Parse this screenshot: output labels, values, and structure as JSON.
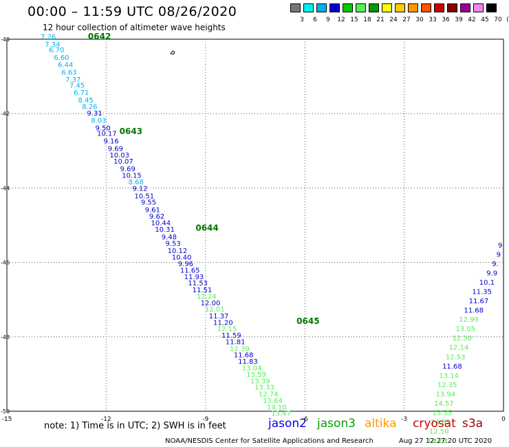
{
  "title": "00:00 – 11:59 UTC 08/26/2020",
  "subtitle": "12 hour collection of altimeter wave heights",
  "note": "note: 1) Time is in UTC; 2) SWH is in feet",
  "credit": "NOAA/NESDIS Center for Satellite Applications and Research",
  "timestamp": "Aug 27 12:27:20 UTC 2020",
  "legend": [
    {
      "name": "jason2",
      "color": "#0000ee"
    },
    {
      "name": "jason3",
      "color": "#00a000"
    },
    {
      "name": "altika",
      "color": "#ff9900"
    },
    {
      "name": "cryosat",
      "color": "#cc0000"
    },
    {
      "name": "s3a",
      "color": "#990000"
    }
  ],
  "color_scale": {
    "labels": [
      "3",
      "6",
      "9",
      "12",
      "15",
      "18",
      "21",
      "24",
      "27",
      "30",
      "33",
      "36",
      "39",
      "42",
      "45",
      "70",
      "(ft)"
    ],
    "colors": [
      "#777777",
      "#00f0f0",
      "#00b0f0",
      "#0000cc",
      "#00cc00",
      "#55ee55",
      "#009900",
      "#ffff00",
      "#ffcc00",
      "#ff9900",
      "#ff5500",
      "#cc0000",
      "#880000",
      "#990099",
      "#ee88ee",
      "#000000"
    ]
  },
  "map": {
    "lon_ticks": [
      "-15",
      "-12",
      "-9",
      "-6",
      "-3",
      "0"
    ],
    "lat_ticks": [
      "-40",
      "-42",
      "-44",
      "-46",
      "-48",
      "-50"
    ],
    "lon_range": [
      -15,
      0
    ],
    "lat_range": [
      -40,
      -50
    ]
  },
  "time_labels": [
    {
      "text": "0642",
      "lon": -12.55,
      "lat": -40.0
    },
    {
      "text": "0643",
      "lon": -11.6,
      "lat": -42.55
    },
    {
      "text": "0644",
      "lon": -9.3,
      "lat": -45.15
    },
    {
      "text": "0645",
      "lon": -6.25,
      "lat": -47.65
    }
  ],
  "tracks": [
    {
      "satellite": "jason3",
      "points": [
        {
          "v": "7.26",
          "c": "#00b0f0",
          "lon": -13.75,
          "lat": -40.0
        },
        {
          "v": "7.34",
          "c": "#00b0f0",
          "lon": -13.62,
          "lat": -40.2
        },
        {
          "v": "6.70",
          "c": "#00b0f0",
          "lon": -13.5,
          "lat": -40.35
        },
        {
          "v": "6.60",
          "c": "#00b0f0",
          "lon": -13.35,
          "lat": -40.55
        },
        {
          "v": "6.44",
          "c": "#00b0f0",
          "lon": -13.23,
          "lat": -40.75
        },
        {
          "v": "6.63",
          "c": "#00b0f0",
          "lon": -13.12,
          "lat": -40.95
        },
        {
          "v": "7.37",
          "c": "#00b0f0",
          "lon": -13.0,
          "lat": -41.15
        },
        {
          "v": "7.45",
          "c": "#00b0f0",
          "lon": -12.88,
          "lat": -41.3
        },
        {
          "v": "6.71",
          "c": "#00b0f0",
          "lon": -12.75,
          "lat": -41.5
        },
        {
          "v": "8.45",
          "c": "#00b0f0",
          "lon": -12.62,
          "lat": -41.7
        },
        {
          "v": "8.26",
          "c": "#00b0f0",
          "lon": -12.5,
          "lat": -41.88
        },
        {
          "v": "9.31",
          "c": "#0000cc",
          "lon": -12.35,
          "lat": -42.05
        },
        {
          "v": "8.03",
          "c": "#00b0f0",
          "lon": -12.23,
          "lat": -42.25
        },
        {
          "v": "9.50",
          "c": "#0000cc",
          "lon": -12.1,
          "lat": -42.45
        },
        {
          "v": "10.17",
          "c": "#0000cc",
          "lon": -11.98,
          "lat": -42.6
        },
        {
          "v": "9.16",
          "c": "#0000cc",
          "lon": -11.85,
          "lat": -42.8
        },
        {
          "v": "9.69",
          "c": "#0000cc",
          "lon": -11.72,
          "lat": -43.0
        },
        {
          "v": "10.03",
          "c": "#0000cc",
          "lon": -11.6,
          "lat": -43.18
        },
        {
          "v": "10.07",
          "c": "#0000cc",
          "lon": -11.48,
          "lat": -43.35
        },
        {
          "v": "9.69",
          "c": "#0000cc",
          "lon": -11.35,
          "lat": -43.55
        },
        {
          "v": "10.15",
          "c": "#0000cc",
          "lon": -11.23,
          "lat": -43.72
        },
        {
          "v": "8.68",
          "c": "#00b0f0",
          "lon": -11.1,
          "lat": -43.9
        },
        {
          "v": "9.12",
          "c": "#0000cc",
          "lon": -10.98,
          "lat": -44.08
        },
        {
          "v": "10.51",
          "c": "#0000cc",
          "lon": -10.85,
          "lat": -44.28
        },
        {
          "v": "9.55",
          "c": "#0000cc",
          "lon": -10.72,
          "lat": -44.45
        },
        {
          "v": "9.61",
          "c": "#0000cc",
          "lon": -10.6,
          "lat": -44.65
        },
        {
          "v": "9.62",
          "c": "#0000cc",
          "lon": -10.47,
          "lat": -44.82
        },
        {
          "v": "10.44",
          "c": "#0000cc",
          "lon": -10.35,
          "lat": -45.0
        },
        {
          "v": "10.31",
          "c": "#0000cc",
          "lon": -10.23,
          "lat": -45.18
        },
        {
          "v": "9.48",
          "c": "#0000cc",
          "lon": -10.1,
          "lat": -45.38
        },
        {
          "v": "9.53",
          "c": "#0000cc",
          "lon": -9.98,
          "lat": -45.55
        },
        {
          "v": "10.12",
          "c": "#0000cc",
          "lon": -9.85,
          "lat": -45.75
        },
        {
          "v": "10.40",
          "c": "#0000cc",
          "lon": -9.72,
          "lat": -45.92
        },
        {
          "v": "9.96",
          "c": "#0000cc",
          "lon": -9.6,
          "lat": -46.1
        },
        {
          "v": "11.65",
          "c": "#0000cc",
          "lon": -9.47,
          "lat": -46.28
        },
        {
          "v": "11.93",
          "c": "#0000cc",
          "lon": -9.35,
          "lat": -46.45
        },
        {
          "v": "11.53",
          "c": "#0000cc",
          "lon": -9.23,
          "lat": -46.62
        },
        {
          "v": "11.51",
          "c": "#0000cc",
          "lon": -9.1,
          "lat": -46.8
        },
        {
          "v": "12.24",
          "c": "#55ee55",
          "lon": -8.97,
          "lat": -46.98
        },
        {
          "v": "12.00",
          "c": "#0000cc",
          "lon": -8.85,
          "lat": -47.15
        },
        {
          "v": "12.01",
          "c": "#55ee55",
          "lon": -8.72,
          "lat": -47.32
        },
        {
          "v": "11.37",
          "c": "#0000cc",
          "lon": -8.6,
          "lat": -47.5
        },
        {
          "v": "11.20",
          "c": "#0000cc",
          "lon": -8.47,
          "lat": -47.68
        },
        {
          "v": "12.15",
          "c": "#55ee55",
          "lon": -8.35,
          "lat": -47.85
        },
        {
          "v": "11.59",
          "c": "#0000cc",
          "lon": -8.22,
          "lat": -48.02
        },
        {
          "v": "11.81",
          "c": "#0000cc",
          "lon": -8.1,
          "lat": -48.2
        },
        {
          "v": "12.39",
          "c": "#55ee55",
          "lon": -7.97,
          "lat": -48.38
        },
        {
          "v": "11.68",
          "c": "#0000cc",
          "lon": -7.85,
          "lat": -48.55
        },
        {
          "v": "11.83",
          "c": "#0000cc",
          "lon": -7.72,
          "lat": -48.72
        },
        {
          "v": "13.04",
          "c": "#55ee55",
          "lon": -7.6,
          "lat": -48.9
        },
        {
          "v": "13.59",
          "c": "#55ee55",
          "lon": -7.47,
          "lat": -49.08
        },
        {
          "v": "13.39",
          "c": "#55ee55",
          "lon": -7.35,
          "lat": -49.25
        },
        {
          "v": "13.33",
          "c": "#55ee55",
          "lon": -7.22,
          "lat": -49.42
        },
        {
          "v": "12.74",
          "c": "#55ee55",
          "lon": -7.1,
          "lat": -49.6
        },
        {
          "v": "13.64",
          "c": "#55ee55",
          "lon": -6.97,
          "lat": -49.78
        },
        {
          "v": "14.10",
          "c": "#55ee55",
          "lon": -6.85,
          "lat": -49.95
        },
        {
          "v": "13.47",
          "c": "#55ee55",
          "lon": -6.72,
          "lat": -50.12
        }
      ]
    },
    {
      "satellite": "jason3",
      "points": [
        {
          "v": "9",
          "c": "#0000cc",
          "lon": -0.1,
          "lat": -45.6
        },
        {
          "v": "9",
          "c": "#0000cc",
          "lon": -0.15,
          "lat": -45.85
        },
        {
          "v": "9.",
          "c": "#0000cc",
          "lon": -0.25,
          "lat": -46.1
        },
        {
          "v": "9.9",
          "c": "#0000cc",
          "lon": -0.35,
          "lat": -46.35
        },
        {
          "v": "10.1",
          "c": "#0000cc",
          "lon": -0.5,
          "lat": -46.6
        },
        {
          "v": "11.35",
          "c": "#0000cc",
          "lon": -0.65,
          "lat": -46.85
        },
        {
          "v": "11.67",
          "c": "#0000cc",
          "lon": -0.75,
          "lat": -47.1
        },
        {
          "v": "11.68",
          "c": "#0000cc",
          "lon": -0.9,
          "lat": -47.35
        },
        {
          "v": "12.99",
          "c": "#55ee55",
          "lon": -1.05,
          "lat": -47.6
        },
        {
          "v": "13.05",
          "c": "#55ee55",
          "lon": -1.15,
          "lat": -47.85
        },
        {
          "v": "12.50",
          "c": "#55ee55",
          "lon": -1.25,
          "lat": -48.1
        },
        {
          "v": "12.14",
          "c": "#55ee55",
          "lon": -1.35,
          "lat": -48.35
        },
        {
          "v": "12.53",
          "c": "#55ee55",
          "lon": -1.45,
          "lat": -48.6
        },
        {
          "v": "11.68",
          "c": "#0000cc",
          "lon": -1.55,
          "lat": -48.85
        },
        {
          "v": "13.14",
          "c": "#55ee55",
          "lon": -1.65,
          "lat": -49.1
        },
        {
          "v": "12.35",
          "c": "#55ee55",
          "lon": -1.7,
          "lat": -49.35
        },
        {
          "v": "13.94",
          "c": "#55ee55",
          "lon": -1.75,
          "lat": -49.6
        },
        {
          "v": "14.57",
          "c": "#55ee55",
          "lon": -1.8,
          "lat": -49.85
        },
        {
          "v": "13.35",
          "c": "#55ee55",
          "lon": -1.85,
          "lat": -50.1
        },
        {
          "v": "14.85",
          "c": "#55ee55",
          "lon": -1.9,
          "lat": -50.35
        },
        {
          "v": "12.50",
          "c": "#55ee55",
          "lon": -1.95,
          "lat": -50.6
        },
        {
          "v": "14.28",
          "c": "#55ee55",
          "lon": -2.0,
          "lat": -50.85
        }
      ]
    }
  ]
}
